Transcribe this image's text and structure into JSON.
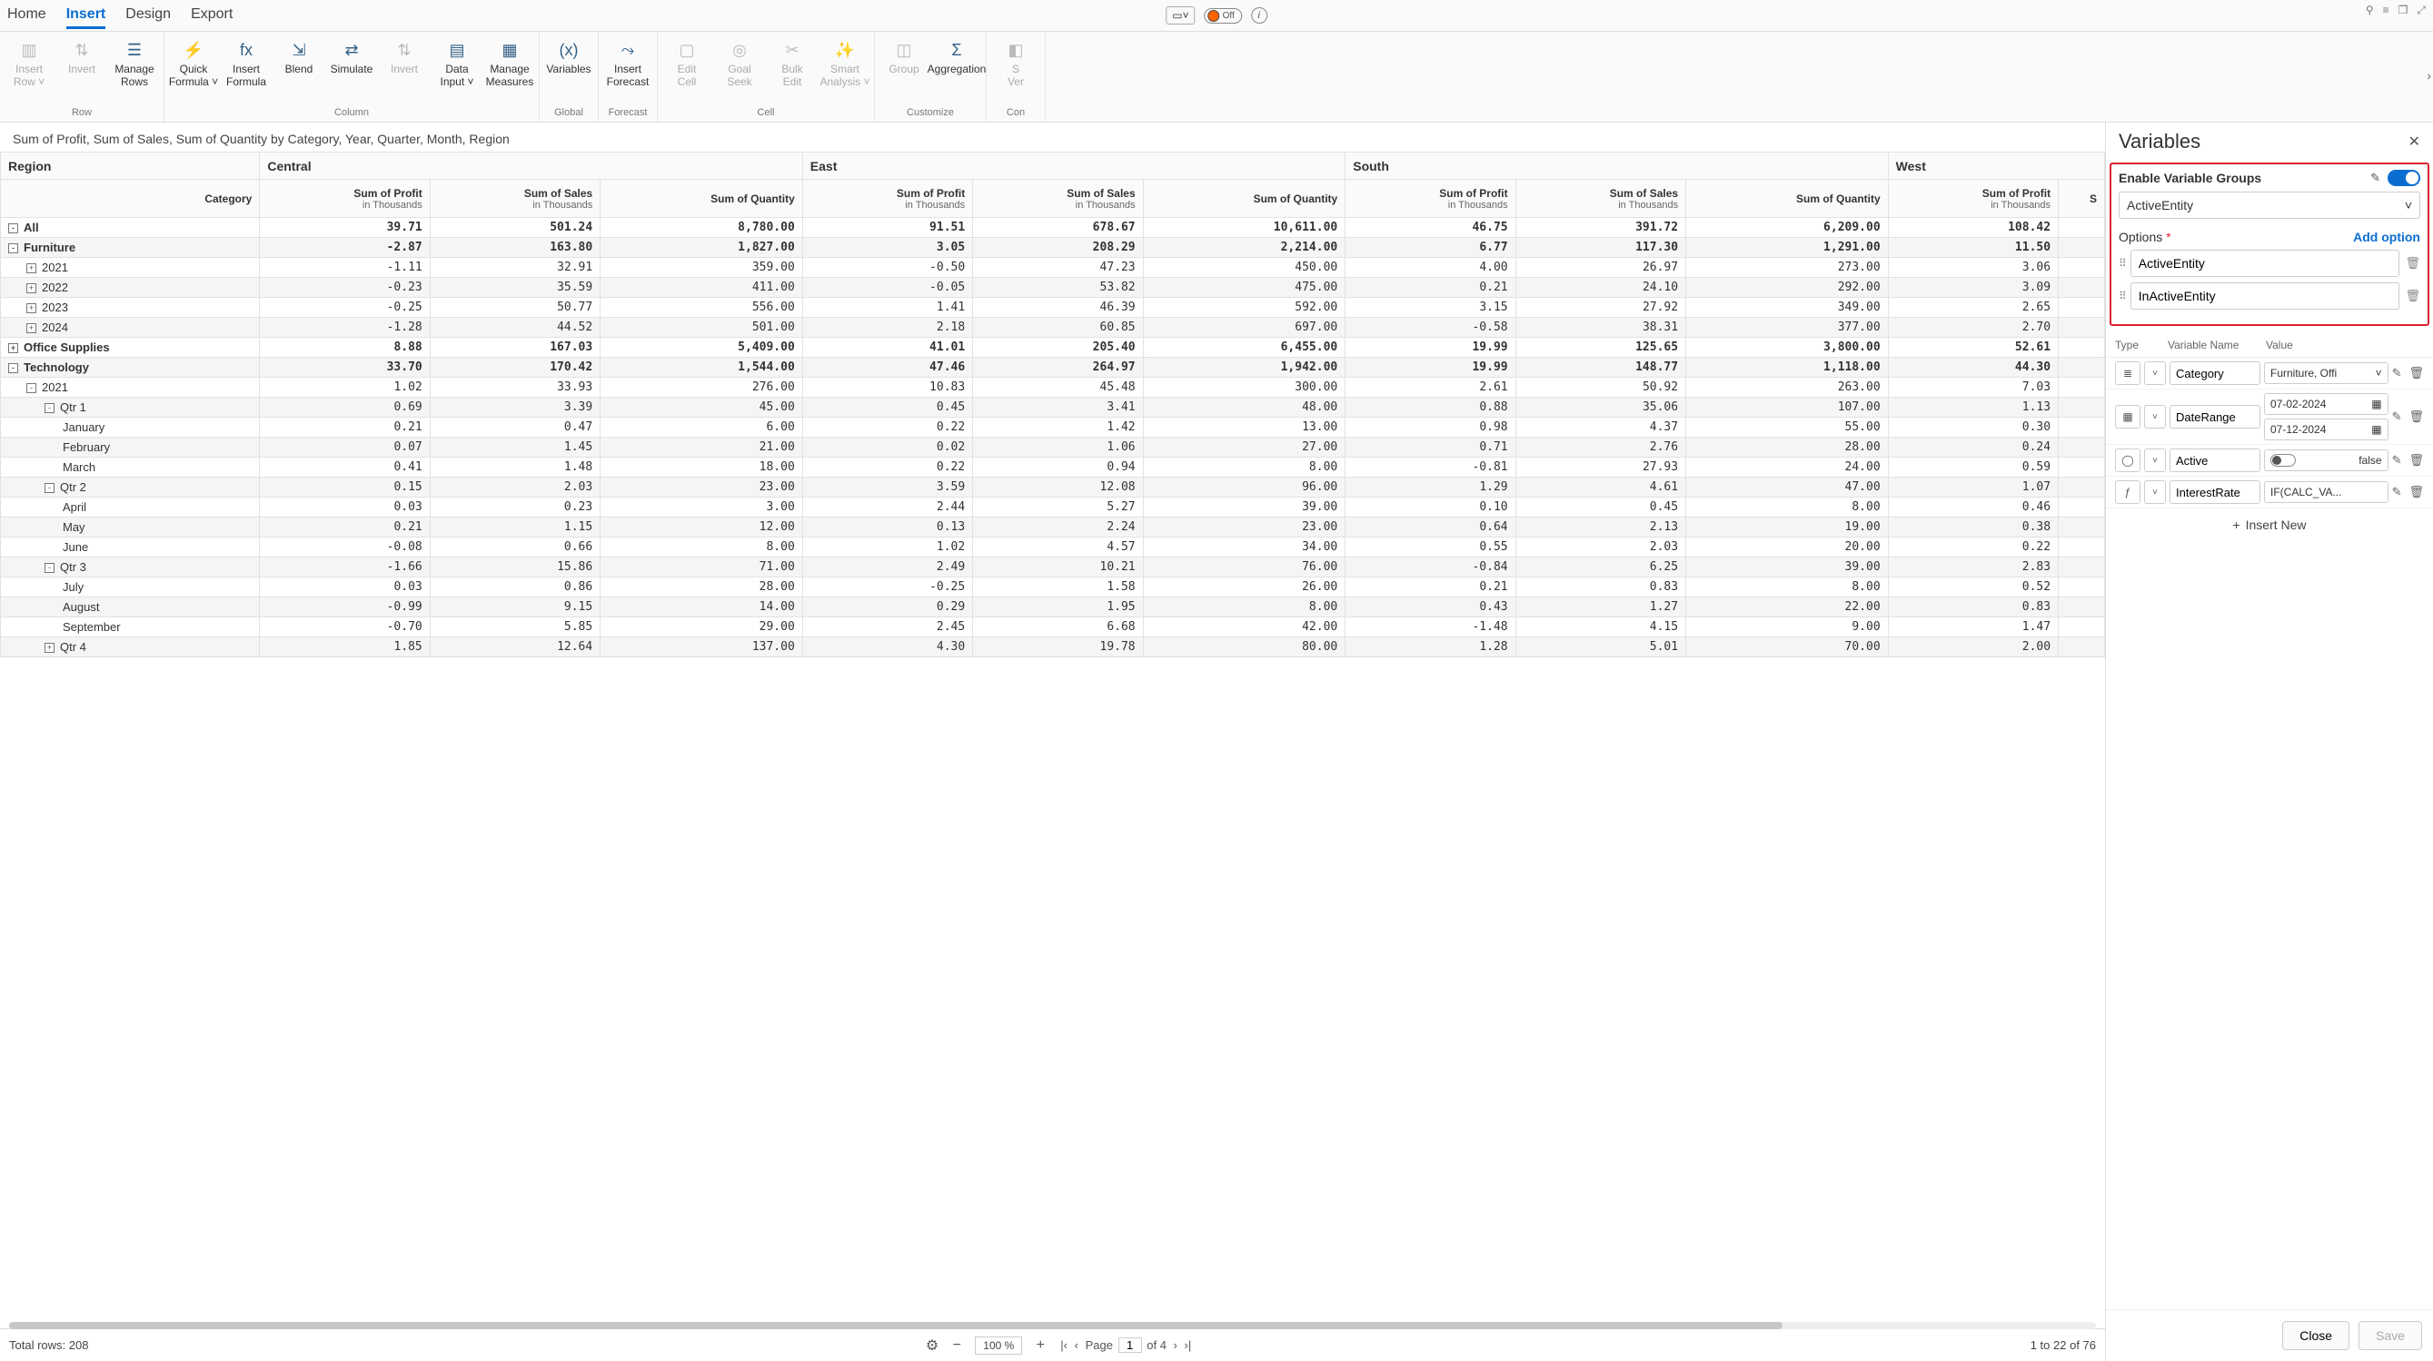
{
  "tabs": [
    "Home",
    "Insert",
    "Design",
    "Export"
  ],
  "activeTab": "Insert",
  "topToggleLabel": "Off",
  "ribbon": {
    "groups": [
      {
        "label": "Row",
        "items": [
          {
            "name": "insert-row",
            "label": "Insert\nRow ˅",
            "disabled": true,
            "icon": "row"
          },
          {
            "name": "invert",
            "label": "Invert",
            "disabled": true,
            "icon": "invert"
          },
          {
            "name": "manage-rows",
            "label": "Manage\nRows",
            "disabled": false,
            "icon": "rows"
          }
        ]
      },
      {
        "label": "Column",
        "items": [
          {
            "name": "quick-formula",
            "label": "Quick\nFormula ˅",
            "icon": "bolt"
          },
          {
            "name": "insert-formula",
            "label": "Insert\nFormula",
            "icon": "formula"
          },
          {
            "name": "blend",
            "label": "Blend",
            "icon": "blend"
          },
          {
            "name": "simulate",
            "label": "Simulate",
            "icon": "simulate"
          },
          {
            "name": "invert-col",
            "label": "Invert",
            "disabled": true,
            "icon": "invert"
          },
          {
            "name": "data-input",
            "label": "Data\nInput ˅",
            "icon": "datainput"
          },
          {
            "name": "manage-measures",
            "label": "Manage\nMeasures",
            "icon": "measures"
          }
        ]
      },
      {
        "label": "Global",
        "items": [
          {
            "name": "variables",
            "label": "Variables",
            "icon": "vars"
          }
        ]
      },
      {
        "label": "Forecast",
        "items": [
          {
            "name": "insert-forecast",
            "label": "Insert\nForecast",
            "icon": "forecast"
          }
        ]
      },
      {
        "label": "Cell",
        "items": [
          {
            "name": "edit-cell",
            "label": "Edit\nCell",
            "disabled": true,
            "icon": "editcell"
          },
          {
            "name": "goal-seek",
            "label": "Goal\nSeek",
            "disabled": true,
            "icon": "goal"
          },
          {
            "name": "bulk-edit",
            "label": "Bulk\nEdit",
            "disabled": true,
            "icon": "bulk"
          },
          {
            "name": "smart-analysis",
            "label": "Smart\nAnalysis ˅",
            "disabled": true,
            "icon": "smart"
          }
        ]
      },
      {
        "label": "Customize",
        "items": [
          {
            "name": "group",
            "label": "Group",
            "disabled": true,
            "icon": "group"
          },
          {
            "name": "aggregation",
            "label": "Aggregation",
            "icon": "agg"
          }
        ]
      },
      {
        "label": "Con",
        "items": [
          {
            "name": "s-ver",
            "label": "S\nVer",
            "disabled": true,
            "icon": "sver"
          }
        ]
      }
    ]
  },
  "sheetTitle": "Sum of Profit, Sum of Sales, Sum of Quantity by Category, Year, Quarter, Month, Region",
  "regionHeaders": [
    "Region",
    "Central",
    "East",
    "South",
    "West"
  ],
  "categoryLabel": "Category",
  "measureHeaders": [
    {
      "t": "Sum of Profit",
      "s": "in Thousands"
    },
    {
      "t": "Sum of Sales",
      "s": "in Thousands"
    },
    {
      "t": "Sum of Quantity",
      "s": ""
    },
    {
      "t": "Sum of Profit",
      "s": "in Thousands"
    },
    {
      "t": "Sum of Sales",
      "s": "in Thousands"
    },
    {
      "t": "Sum of Quantity",
      "s": ""
    },
    {
      "t": "Sum of Profit",
      "s": "in Thousands"
    },
    {
      "t": "Sum of Sales",
      "s": "in Thousands"
    },
    {
      "t": "Sum of Quantity",
      "s": ""
    },
    {
      "t": "Sum of Profit",
      "s": "in Thousands"
    },
    {
      "t": "S",
      "s": ""
    }
  ],
  "rows": [
    {
      "label": "All",
      "indent": 0,
      "icon": "-",
      "bold": true,
      "stripe": false,
      "v": [
        "39.71",
        "501.24",
        "8,780.00",
        "91.51",
        "678.67",
        "10,611.00",
        "46.75",
        "391.72",
        "6,209.00",
        "108.42",
        ""
      ]
    },
    {
      "label": "Furniture",
      "indent": 0,
      "icon": "-",
      "bold": true,
      "stripe": true,
      "v": [
        "-2.87",
        "163.80",
        "1,827.00",
        "3.05",
        "208.29",
        "2,214.00",
        "6.77",
        "117.30",
        "1,291.00",
        "11.50",
        ""
      ]
    },
    {
      "label": "2021",
      "indent": 1,
      "icon": "+",
      "bold": false,
      "stripe": false,
      "v": [
        "-1.11",
        "32.91",
        "359.00",
        "-0.50",
        "47.23",
        "450.00",
        "4.00",
        "26.97",
        "273.00",
        "3.06",
        ""
      ]
    },
    {
      "label": "2022",
      "indent": 1,
      "icon": "+",
      "bold": false,
      "stripe": true,
      "v": [
        "-0.23",
        "35.59",
        "411.00",
        "-0.05",
        "53.82",
        "475.00",
        "0.21",
        "24.10",
        "292.00",
        "3.09",
        ""
      ]
    },
    {
      "label": "2023",
      "indent": 1,
      "icon": "+",
      "bold": false,
      "stripe": false,
      "v": [
        "-0.25",
        "50.77",
        "556.00",
        "1.41",
        "46.39",
        "592.00",
        "3.15",
        "27.92",
        "349.00",
        "2.65",
        ""
      ]
    },
    {
      "label": "2024",
      "indent": 1,
      "icon": "+",
      "bold": false,
      "stripe": true,
      "v": [
        "-1.28",
        "44.52",
        "501.00",
        "2.18",
        "60.85",
        "697.00",
        "-0.58",
        "38.31",
        "377.00",
        "2.70",
        ""
      ]
    },
    {
      "label": "Office Supplies",
      "indent": 0,
      "icon": "+",
      "bold": true,
      "stripe": false,
      "v": [
        "8.88",
        "167.03",
        "5,409.00",
        "41.01",
        "205.40",
        "6,455.00",
        "19.99",
        "125.65",
        "3,800.00",
        "52.61",
        ""
      ]
    },
    {
      "label": "Technology",
      "indent": 0,
      "icon": "-",
      "bold": true,
      "stripe": true,
      "v": [
        "33.70",
        "170.42",
        "1,544.00",
        "47.46",
        "264.97",
        "1,942.00",
        "19.99",
        "148.77",
        "1,118.00",
        "44.30",
        ""
      ]
    },
    {
      "label": "2021",
      "indent": 1,
      "icon": "-",
      "bold": false,
      "stripe": false,
      "v": [
        "1.02",
        "33.93",
        "276.00",
        "10.83",
        "45.48",
        "300.00",
        "2.61",
        "50.92",
        "263.00",
        "7.03",
        ""
      ]
    },
    {
      "label": "Qtr 1",
      "indent": 2,
      "icon": "-",
      "bold": false,
      "stripe": true,
      "v": [
        "0.69",
        "3.39",
        "45.00",
        "0.45",
        "3.41",
        "48.00",
        "0.88",
        "35.06",
        "107.00",
        "1.13",
        ""
      ]
    },
    {
      "label": "January",
      "indent": 3,
      "icon": "",
      "bold": false,
      "stripe": false,
      "v": [
        "0.21",
        "0.47",
        "6.00",
        "0.22",
        "1.42",
        "13.00",
        "0.98",
        "4.37",
        "55.00",
        "0.30",
        ""
      ]
    },
    {
      "label": "February",
      "indent": 3,
      "icon": "",
      "bold": false,
      "stripe": true,
      "v": [
        "0.07",
        "1.45",
        "21.00",
        "0.02",
        "1.06",
        "27.00",
        "0.71",
        "2.76",
        "28.00",
        "0.24",
        ""
      ]
    },
    {
      "label": "March",
      "indent": 3,
      "icon": "",
      "bold": false,
      "stripe": false,
      "v": [
        "0.41",
        "1.48",
        "18.00",
        "0.22",
        "0.94",
        "8.00",
        "-0.81",
        "27.93",
        "24.00",
        "0.59",
        ""
      ]
    },
    {
      "label": "Qtr 2",
      "indent": 2,
      "icon": "-",
      "bold": false,
      "stripe": true,
      "v": [
        "0.15",
        "2.03",
        "23.00",
        "3.59",
        "12.08",
        "96.00",
        "1.29",
        "4.61",
        "47.00",
        "1.07",
        ""
      ]
    },
    {
      "label": "April",
      "indent": 3,
      "icon": "",
      "bold": false,
      "stripe": false,
      "v": [
        "0.03",
        "0.23",
        "3.00",
        "2.44",
        "5.27",
        "39.00",
        "0.10",
        "0.45",
        "8.00",
        "0.46",
        ""
      ]
    },
    {
      "label": "May",
      "indent": 3,
      "icon": "",
      "bold": false,
      "stripe": true,
      "v": [
        "0.21",
        "1.15",
        "12.00",
        "0.13",
        "2.24",
        "23.00",
        "0.64",
        "2.13",
        "19.00",
        "0.38",
        ""
      ]
    },
    {
      "label": "June",
      "indent": 3,
      "icon": "",
      "bold": false,
      "stripe": false,
      "v": [
        "-0.08",
        "0.66",
        "8.00",
        "1.02",
        "4.57",
        "34.00",
        "0.55",
        "2.03",
        "20.00",
        "0.22",
        ""
      ]
    },
    {
      "label": "Qtr 3",
      "indent": 2,
      "icon": "-",
      "bold": false,
      "stripe": true,
      "v": [
        "-1.66",
        "15.86",
        "71.00",
        "2.49",
        "10.21",
        "76.00",
        "-0.84",
        "6.25",
        "39.00",
        "2.83",
        ""
      ]
    },
    {
      "label": "July",
      "indent": 3,
      "icon": "",
      "bold": false,
      "stripe": false,
      "v": [
        "0.03",
        "0.86",
        "28.00",
        "-0.25",
        "1.58",
        "26.00",
        "0.21",
        "0.83",
        "8.00",
        "0.52",
        ""
      ]
    },
    {
      "label": "August",
      "indent": 3,
      "icon": "",
      "bold": false,
      "stripe": true,
      "v": [
        "-0.99",
        "9.15",
        "14.00",
        "0.29",
        "1.95",
        "8.00",
        "0.43",
        "1.27",
        "22.00",
        "0.83",
        ""
      ]
    },
    {
      "label": "September",
      "indent": 3,
      "icon": "",
      "bold": false,
      "stripe": false,
      "v": [
        "-0.70",
        "5.85",
        "29.00",
        "2.45",
        "6.68",
        "42.00",
        "-1.48",
        "4.15",
        "9.00",
        "1.47",
        ""
      ]
    },
    {
      "label": "Qtr 4",
      "indent": 2,
      "icon": "+",
      "bold": false,
      "stripe": true,
      "v": [
        "1.85",
        "12.64",
        "137.00",
        "4.30",
        "19.78",
        "80.00",
        "1.28",
        "5.01",
        "70.00",
        "2.00",
        ""
      ]
    }
  ],
  "bottom": {
    "totalRows": "Total rows: 208",
    "zoom": "100 %",
    "pageLabel": "Page",
    "pageNum": "1",
    "pageOf": "of 4",
    "rangeText": "1 to 22 of 76"
  },
  "panel": {
    "title": "Variables",
    "enableLabel": "Enable Variable Groups",
    "groupSelect": "ActiveEntity",
    "optionsLabel": "Options",
    "addOption": "Add option",
    "options": [
      "ActiveEntity",
      "InActiveEntity"
    ],
    "tableHdr": {
      "type": "Type",
      "name": "Variable Name",
      "value": "Value"
    },
    "vars": [
      {
        "typeIcon": "list",
        "name": "Category",
        "value": "Furniture, Offi"
      },
      {
        "typeIcon": "date",
        "name": "DateRange",
        "value": "07-02-2024",
        "value2": "07-12-2024"
      },
      {
        "typeIcon": "bool",
        "name": "Active",
        "value": "false"
      },
      {
        "typeIcon": "fx",
        "name": "InterestRate",
        "value": "IF(CALC_VA..."
      }
    ],
    "insertNew": "Insert New",
    "close": "Close",
    "save": "Save"
  }
}
